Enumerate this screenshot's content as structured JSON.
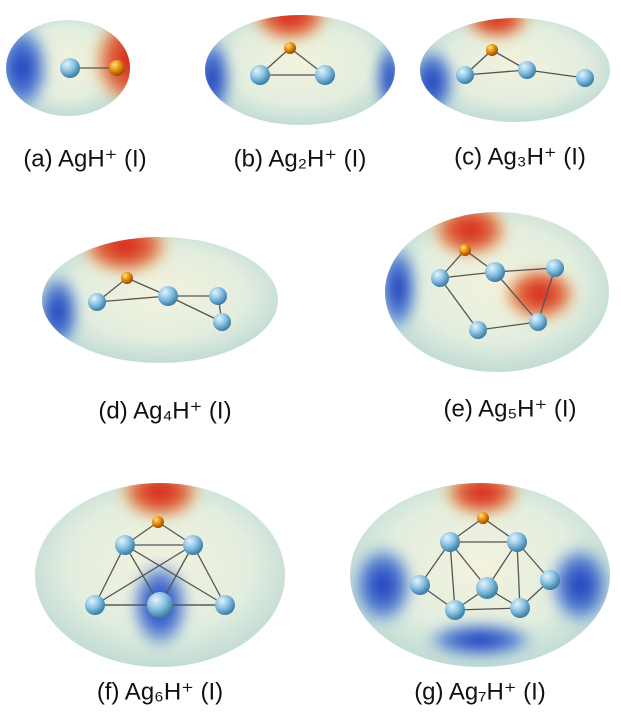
{
  "panels": [
    {
      "label": "(a) AgH⁺ (I)"
    },
    {
      "label": "(b) Ag₂H⁺ (I)"
    },
    {
      "label": "(c) Ag₃H⁺ (I)"
    },
    {
      "label": "(d) Ag₄H⁺ (I)"
    },
    {
      "label": "(e) Ag₅H⁺ (I)"
    },
    {
      "label": "(f) Ag₆H⁺ (I)"
    },
    {
      "label": "(g) Ag₇H⁺ (I)"
    }
  ]
}
